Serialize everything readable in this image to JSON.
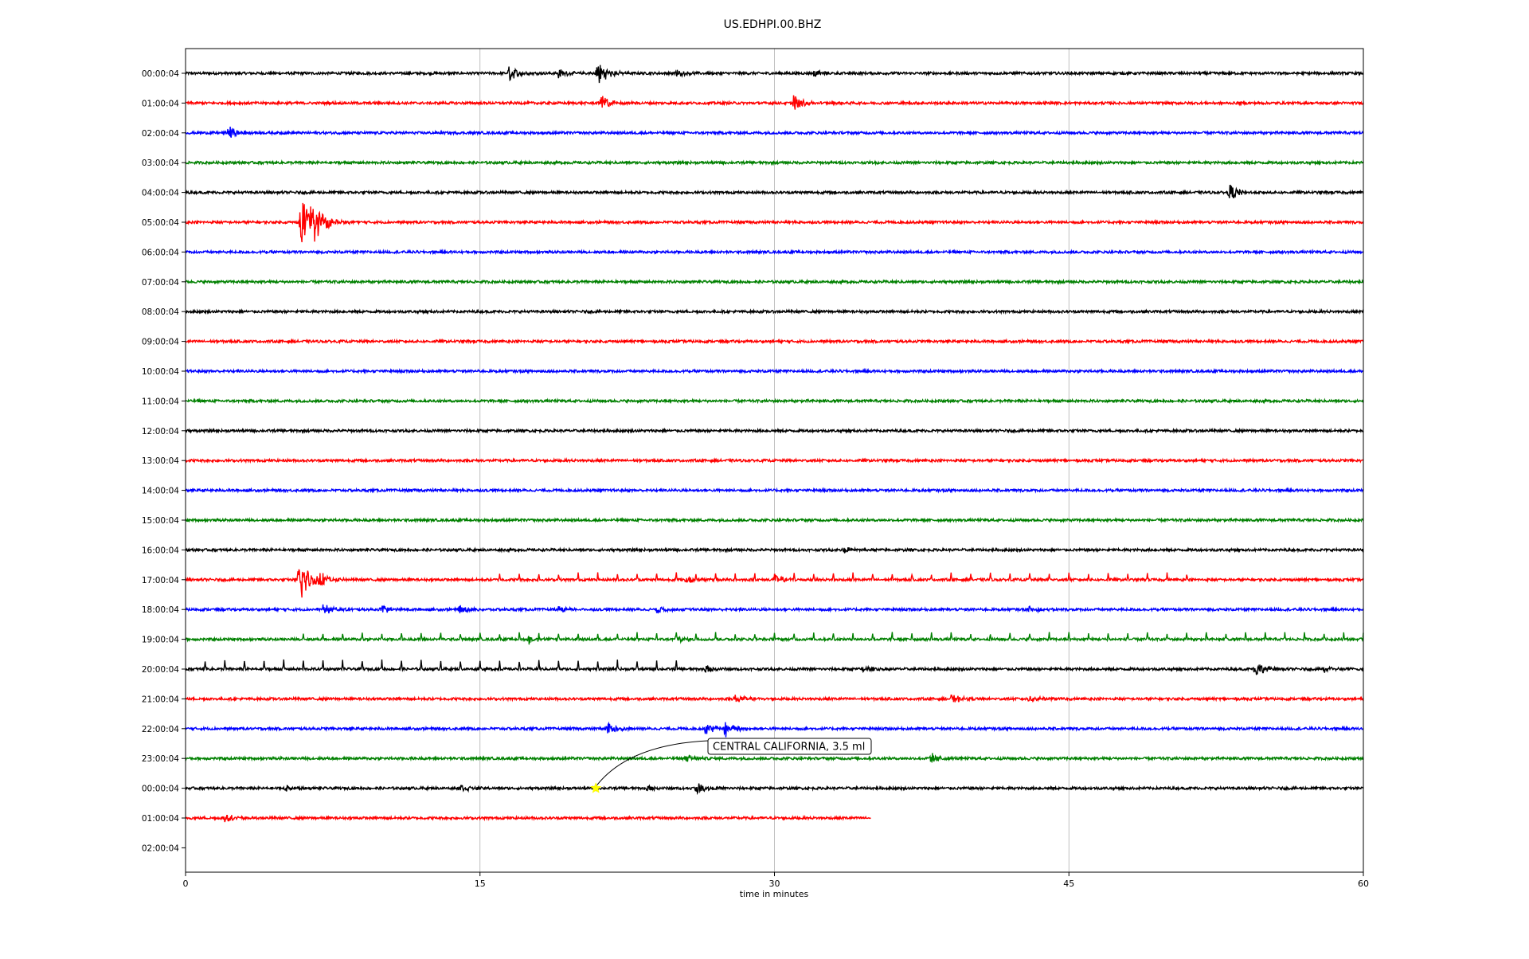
{
  "chart_data": {
    "type": "line",
    "title": "US.EDHPI.00.BHZ",
    "xlabel": "time in minutes",
    "ylabel": "",
    "xlim": [
      0,
      60
    ],
    "x_ticks": [
      0,
      15,
      30,
      45,
      60
    ],
    "grid": "vertical",
    "row_labels": [
      "00:00:04",
      "01:00:04",
      "02:00:04",
      "03:00:04",
      "04:00:04",
      "05:00:04",
      "06:00:04",
      "07:00:04",
      "08:00:04",
      "09:00:04",
      "10:00:04",
      "11:00:04",
      "12:00:04",
      "13:00:04",
      "14:00:04",
      "15:00:04",
      "16:00:04",
      "17:00:04",
      "18:00:04",
      "19:00:04",
      "20:00:04",
      "21:00:04",
      "22:00:04",
      "23:00:04",
      "00:00:04",
      "01:00:04",
      "02:00:04"
    ],
    "color_cycle": [
      "#000000",
      "#ff0000",
      "#0000ff",
      "#008000"
    ],
    "trace_end_minutes": [
      60,
      60,
      60,
      60,
      60,
      60,
      60,
      60,
      60,
      60,
      60,
      60,
      60,
      60,
      60,
      60,
      60,
      60,
      60,
      60,
      60,
      60,
      60,
      60,
      60,
      34.9,
      0
    ],
    "events": [
      {
        "row": 0,
        "minute": 16.5,
        "amp": 0.7
      },
      {
        "row": 0,
        "minute": 19.0,
        "amp": 0.4
      },
      {
        "row": 0,
        "minute": 21.0,
        "amp": 1.2
      },
      {
        "row": 0,
        "minute": 25.0,
        "amp": 0.3
      },
      {
        "row": 0,
        "minute": 32.0,
        "amp": 0.3
      },
      {
        "row": 1,
        "minute": 21.2,
        "amp": 0.8
      },
      {
        "row": 1,
        "minute": 31.0,
        "amp": 0.8
      },
      {
        "row": 2,
        "minute": 2.2,
        "amp": 0.6
      },
      {
        "row": 4,
        "minute": 53.2,
        "amp": 0.7
      },
      {
        "row": 5,
        "minute": 5.9,
        "amp": 2.5
      },
      {
        "row": 5,
        "minute": 6.4,
        "amp": 2.0
      },
      {
        "row": 5,
        "minute": 7.2,
        "amp": 0.5
      },
      {
        "row": 16,
        "minute": 33.5,
        "amp": 0.3
      },
      {
        "row": 17,
        "minute": 5.8,
        "amp": 2.3
      },
      {
        "row": 17,
        "minute": 6.8,
        "amp": 0.7
      },
      {
        "row": 17,
        "minute": 25.5,
        "amp": 0.4
      },
      {
        "row": 17,
        "minute": 30.0,
        "amp": 0.4
      },
      {
        "row": 18,
        "minute": 7.0,
        "amp": 0.5
      },
      {
        "row": 18,
        "minute": 10.0,
        "amp": 0.4
      },
      {
        "row": 18,
        "minute": 14.0,
        "amp": 0.3
      },
      {
        "row": 18,
        "minute": 19.0,
        "amp": 0.3
      },
      {
        "row": 18,
        "minute": 24.0,
        "amp": 0.3
      },
      {
        "row": 18,
        "minute": 43.0,
        "amp": 0.3
      },
      {
        "row": 19,
        "minute": 17.5,
        "amp": 0.4
      },
      {
        "row": 19,
        "minute": 25.0,
        "amp": 0.3
      },
      {
        "row": 20,
        "minute": 26.5,
        "amp": 0.4
      },
      {
        "row": 20,
        "minute": 34.5,
        "amp": 0.3
      },
      {
        "row": 20,
        "minute": 54.5,
        "amp": 0.7
      },
      {
        "row": 20,
        "minute": 58.0,
        "amp": 0.3
      },
      {
        "row": 21,
        "minute": 28.0,
        "amp": 0.4
      },
      {
        "row": 21,
        "minute": 39.0,
        "amp": 0.4
      },
      {
        "row": 21,
        "minute": 43.0,
        "amp": 0.3
      },
      {
        "row": 22,
        "minute": 21.5,
        "amp": 0.6
      },
      {
        "row": 22,
        "minute": 26.5,
        "amp": 0.5
      },
      {
        "row": 22,
        "minute": 27.5,
        "amp": 0.8
      },
      {
        "row": 23,
        "minute": 38.0,
        "amp": 0.5
      },
      {
        "row": 23,
        "minute": 25.5,
        "amp": 0.3
      },
      {
        "row": 24,
        "minute": 5.0,
        "amp": 0.3
      },
      {
        "row": 24,
        "minute": 14.0,
        "amp": 0.4
      },
      {
        "row": 24,
        "minute": 23.5,
        "amp": 0.3
      },
      {
        "row": 24,
        "minute": 26.0,
        "amp": 0.5
      },
      {
        "row": 25,
        "minute": 2.0,
        "amp": 0.4
      }
    ],
    "spike_series": [
      {
        "row": 17,
        "start": 16.0,
        "end": 51.0,
        "step": 1.0,
        "amp": 0.55
      },
      {
        "row": 19,
        "start": 6.0,
        "end": 60.0,
        "step": 1.0,
        "amp": 0.55
      },
      {
        "row": 20,
        "start": 1.0,
        "end": 25.0,
        "step": 1.0,
        "amp": 0.75
      }
    ],
    "annotation": {
      "text": "CENTRAL CALIFORNIA, 3.5 ml",
      "row": 24,
      "minute": 20.9,
      "marker_color": "#ffff00"
    }
  }
}
